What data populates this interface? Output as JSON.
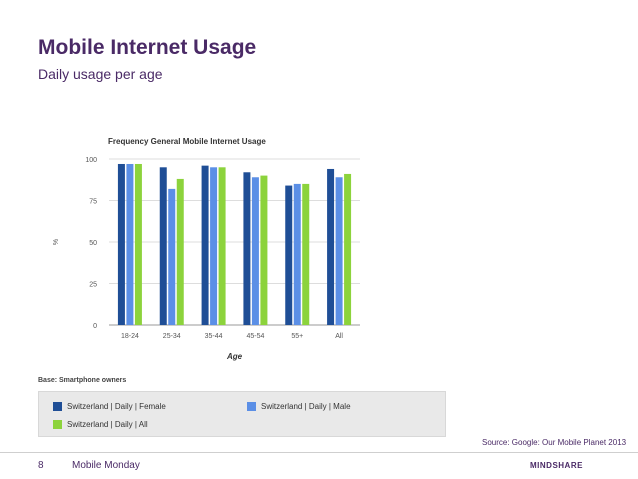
{
  "slide": {
    "title": "Mobile Internet Usage",
    "subtitle": "Daily usage per age",
    "base_note": "Base: Smartphone owners",
    "source": "Source: Google: Our Mobile Planet 2013",
    "page_number": "8",
    "footer_text": "Mobile Monday",
    "brand": "MINDSHARE"
  },
  "chart_data": {
    "type": "bar",
    "title": "Frequency General Mobile Internet Usage",
    "xlabel": "Age",
    "ylabel": "%",
    "categories": [
      "18-24",
      "25-34",
      "35-44",
      "45-54",
      "55+",
      "All"
    ],
    "ylim": [
      0,
      100
    ],
    "yticks": [
      0,
      25,
      50,
      75,
      100
    ],
    "grid": true,
    "legend_position": "bottom",
    "series": [
      {
        "name": "Switzerland | Daily | Female",
        "color": "#1f4e96",
        "values": [
          97,
          95,
          96,
          92,
          84,
          94
        ]
      },
      {
        "name": "Switzerland | Daily | Male",
        "color": "#5b8fe6",
        "values": [
          97,
          82,
          95,
          89,
          85,
          89
        ]
      },
      {
        "name": "Switzerland | Daily | All",
        "color": "#8cd33c",
        "values": [
          97,
          88,
          95,
          90,
          85,
          91
        ]
      }
    ]
  }
}
